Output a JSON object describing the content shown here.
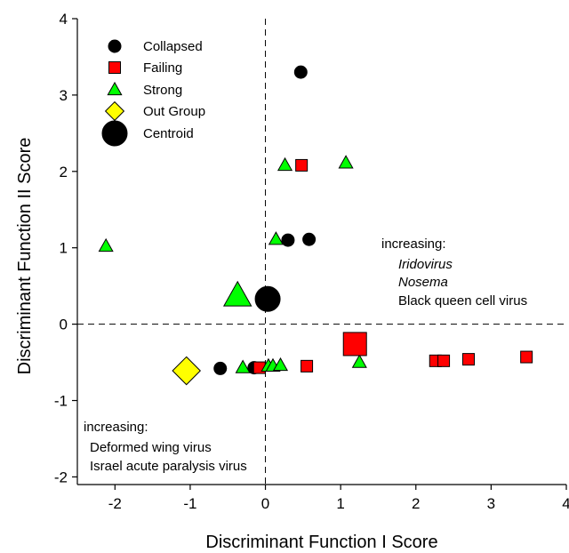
{
  "chart_data": {
    "type": "scatter",
    "xlabel": "Discriminant Function I Score",
    "ylabel": "Discriminant Function II Score",
    "xlim": [
      -2.5,
      4
    ],
    "ylim": [
      -2.1,
      4
    ],
    "x_ticks": [
      "-2",
      "-1",
      "0",
      "1",
      "2",
      "3",
      "4"
    ],
    "y_ticks": [
      "-2",
      "-1",
      "0",
      "1",
      "2",
      "3",
      "4"
    ],
    "reference_lines": {
      "x": 0,
      "y": 0,
      "style": "dashed"
    },
    "legend_placement": "top-left",
    "series": [
      {
        "name": "Collapsed",
        "marker": "circle",
        "color": "#000000",
        "points": [
          [
            0.47,
            3.3
          ],
          [
            0.3,
            1.1
          ],
          [
            0.58,
            1.11
          ],
          [
            -0.6,
            -0.58
          ],
          [
            -0.15,
            -0.57
          ]
        ]
      },
      {
        "name": "Failing",
        "marker": "square",
        "color": "#ff0000",
        "points": [
          [
            0.48,
            2.08
          ],
          [
            -0.08,
            -0.57
          ],
          [
            0.55,
            -0.55
          ],
          [
            2.26,
            -0.48
          ],
          [
            2.37,
            -0.48
          ],
          [
            2.7,
            -0.46
          ],
          [
            3.47,
            -0.43
          ]
        ]
      },
      {
        "name": "Strong",
        "marker": "triangle",
        "color": "#00ff00",
        "points": [
          [
            0.26,
            2.08
          ],
          [
            1.07,
            2.11
          ],
          [
            -2.12,
            1.02
          ],
          [
            0.14,
            1.11
          ],
          [
            -0.3,
            -0.57
          ],
          [
            0.04,
            -0.55
          ],
          [
            0.1,
            -0.55
          ],
          [
            0.2,
            -0.54
          ],
          [
            1.25,
            -0.5
          ]
        ]
      },
      {
        "name": "Out Group",
        "marker": "diamond",
        "color": "#ffff00",
        "points": [
          [
            -1.05,
            -0.61
          ]
        ]
      },
      {
        "name": "Centroid",
        "marker": "circle-large",
        "points": [
          [
            0.03,
            0.33,
            "#000000",
            "circle"
          ],
          [
            -0.37,
            0.37,
            "#00ff00",
            "triangle"
          ],
          [
            1.19,
            -0.26,
            "#ff0000",
            "square"
          ],
          [
            -1.05,
            -0.61,
            "#ffff00",
            "diamond"
          ]
        ]
      }
    ],
    "annotations": {
      "right": {
        "heading": "increasing:",
        "lines": [
          {
            "text": "Iridovirus",
            "italic": true
          },
          {
            "text": "Nosema",
            "italic": true
          },
          {
            "text": "Black queen cell virus",
            "italic": false
          }
        ]
      },
      "bottom_left": {
        "heading": "increasing:",
        "lines": [
          {
            "text": "Deformed wing virus",
            "italic": false
          },
          {
            "text": "Israel acute paralysis virus",
            "italic": false
          }
        ]
      }
    }
  }
}
